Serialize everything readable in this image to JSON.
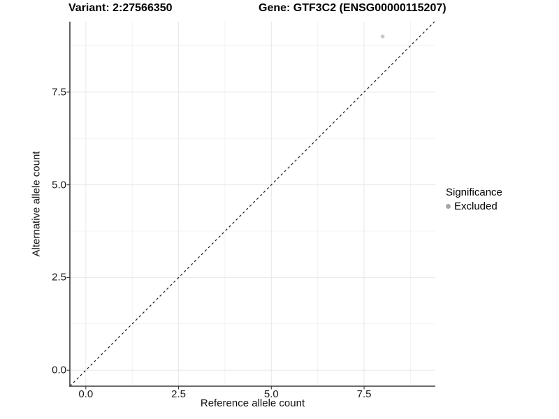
{
  "chart_data": {
    "type": "scatter",
    "title_left": "Variant: 2:27566350",
    "title_right": "Gene: GTF3C2 (ENSG00000115207)",
    "xlabel": "Reference allele count",
    "ylabel": "Alternative allele count",
    "xlim": [
      -0.43,
      9.42
    ],
    "ylim": [
      -0.43,
      9.4
    ],
    "x_major_ticks": [
      0,
      2.5,
      5,
      7.5
    ],
    "x_tick_labels": [
      "0.0",
      "2.5",
      "5.0",
      "7.5"
    ],
    "y_major_ticks": [
      0,
      2.5,
      5,
      7.5
    ],
    "y_tick_labels": [
      "0.0",
      "2.5",
      "5.0",
      "7.5"
    ],
    "x_minor_ticks": [
      1.25,
      3.75,
      6.25,
      8.75
    ],
    "y_minor_ticks": [
      1.25,
      3.75,
      6.25,
      8.75
    ],
    "grid": "major+minor",
    "reference_line": {
      "type": "identity",
      "style": "dashed",
      "color": "#1c1c1c"
    },
    "series": [
      {
        "name": "Excluded",
        "color": "#c8c8c8",
        "points": [
          {
            "x": 8,
            "y": 9
          }
        ]
      }
    ],
    "legend": {
      "title": "Significance",
      "position": "right",
      "items": [
        {
          "label": "Excluded",
          "color": "#a6a6a6"
        }
      ]
    },
    "style_colors": {
      "grid_major": "#e8e8e8",
      "grid_minor": "#f3f3f3",
      "axis_line": "#3c3c3c",
      "tick_mark": "#333333"
    }
  }
}
